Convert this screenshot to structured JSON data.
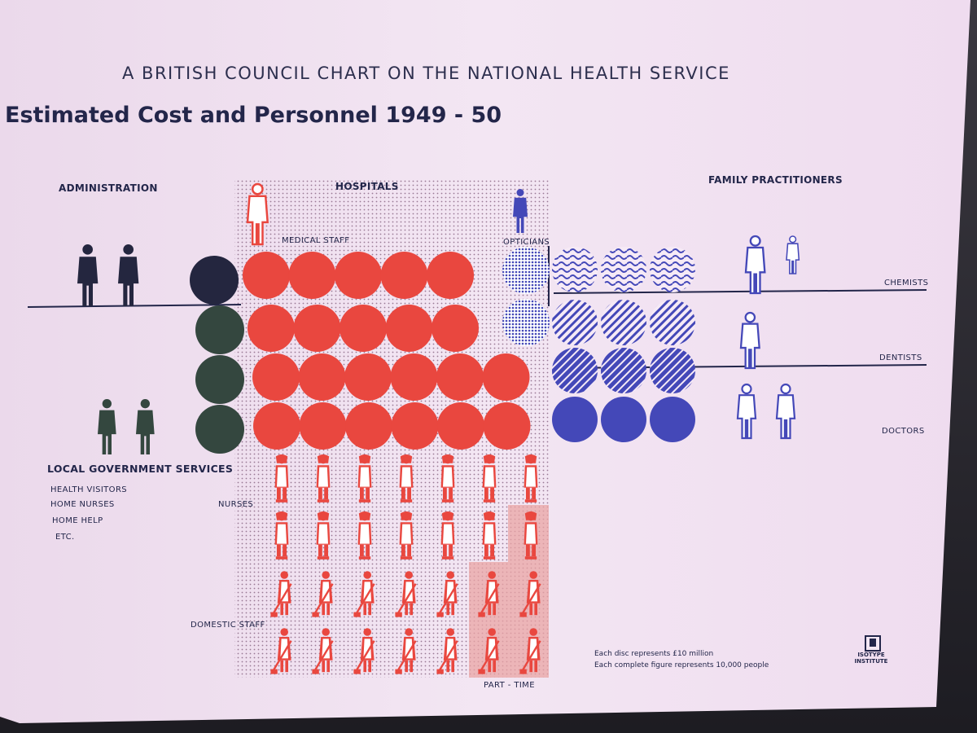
{
  "poster": {
    "supertitle": "A BRITISH COUNCIL CHART ON  THE NATIONAL HEALTH SERVICE",
    "title": "Estimated Cost and Personnel   1949 - 50",
    "legend_cost": "Each disc represents £10 million",
    "legend_people": "Each complete figure represents 10,000 people",
    "logo_text": "ISOTYPE INSTITUTE"
  },
  "chart_data": {
    "type": "pictogram",
    "unit_disc": "£10 million",
    "unit_figure": "10,000 people",
    "colors": {
      "administration": "#24263f",
      "local": "#34473f",
      "hospitals": "#e9473f",
      "family": "#4448b8",
      "paper": "#f1e2f1"
    },
    "sections": [
      {
        "id": "administration",
        "label": "ADMINISTRATION",
        "discs": 1,
        "figures": 2
      },
      {
        "id": "local",
        "label": "LOCAL GOVERNMENT SERVICES",
        "discs": 3,
        "figures": 2,
        "sub": [
          "HEALTH VISITORS",
          "HOME NURSES",
          "HOME HELP",
          "ETC."
        ]
      },
      {
        "id": "hospitals",
        "label": "HOSPITALS",
        "discs": 22,
        "medical_staff_label": "MEDICAL STAFF",
        "medical_staff_figures": 1,
        "nurses_label": "NURSES",
        "nurses_figures": 14,
        "nurses_part_time": 1,
        "domestic_label": "DOMESTIC STAFF",
        "domestic_figures": 14,
        "domestic_part_time": 3,
        "part_time_label": "PART - TIME"
      },
      {
        "id": "family",
        "label": "FAMILY PRACTITIONERS",
        "groups": [
          {
            "label": "OPTICIANS",
            "discs": 2,
            "figures": 1
          },
          {
            "label": "CHEMISTS",
            "discs": 3,
            "figures": 2
          },
          {
            "label": "DENTISTS",
            "discs": 3,
            "figures": 1
          },
          {
            "label": "DOCTORS",
            "discs": 3,
            "figures": 2
          }
        ]
      }
    ]
  }
}
